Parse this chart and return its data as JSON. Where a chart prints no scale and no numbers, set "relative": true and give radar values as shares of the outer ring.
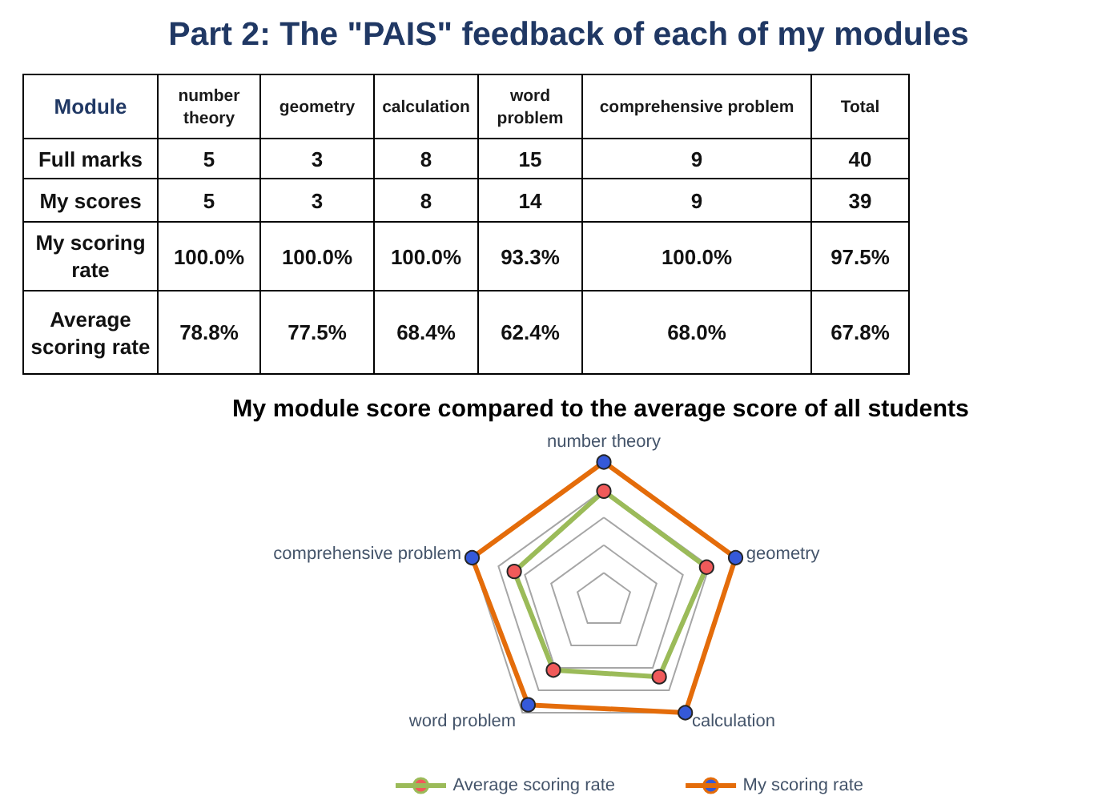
{
  "chart_data": [
    {
      "type": "other",
      "title": "Part 2: The \"PAIS\" feedback of each of my modules",
      "xlabel": "Module",
      "categories": [
        "number theory",
        "geometry",
        "calculation",
        "word problem",
        "comprehensive problem",
        "Total"
      ],
      "series": [
        {
          "name": "Full marks",
          "values": [
            5,
            3,
            8,
            15,
            9,
            40
          ],
          "value_labels": [
            "5",
            "3",
            "8",
            "15",
            "9",
            "40"
          ]
        },
        {
          "name": "My scores",
          "values": [
            5,
            3,
            8,
            14,
            9,
            39
          ],
          "value_labels": [
            "5",
            "3",
            "8",
            "14",
            "9",
            "39"
          ]
        },
        {
          "name": "My scoring rate",
          "values": [
            100.0,
            100.0,
            100.0,
            93.3,
            100.0,
            97.5
          ],
          "value_labels": [
            "100.0%",
            "100.0%",
            "100.0%",
            "93.3%",
            "100.0%",
            "97.5%"
          ]
        },
        {
          "name": "Average scoring rate",
          "values": [
            78.8,
            77.5,
            68.4,
            62.4,
            68.0,
            67.8
          ],
          "value_labels": [
            "78.8%",
            "77.5%",
            "68.4%",
            "62.4%",
            "68.0%",
            "67.8%"
          ]
        }
      ]
    },
    {
      "type": "radar",
      "title": "My module score compared to the average score of all students",
      "categories": [
        "number theory",
        "geometry",
        "calculation",
        "word problem",
        "comprehensive problem"
      ],
      "relative": true,
      "series": [
        {
          "name": "Average scoring rate",
          "color": "#9bbb59",
          "colors": [
            "#f05a5a",
            "#f05a5a",
            "#f05a5a",
            "#f05a5a",
            "#f05a5a"
          ],
          "values": [
            0.79,
            0.78,
            0.68,
            0.62,
            0.68
          ]
        },
        {
          "name": "My scoring rate",
          "color": "#e46c0a",
          "colors": [
            "#3559d9",
            "#3559d9",
            "#3559d9",
            "#3559d9",
            "#3559d9"
          ],
          "values": [
            1,
            1,
            1,
            0.93,
            1
          ]
        }
      ],
      "grid": true,
      "legend": "bottom",
      "marker": "circle",
      "line_style": "solid"
    }
  ]
}
